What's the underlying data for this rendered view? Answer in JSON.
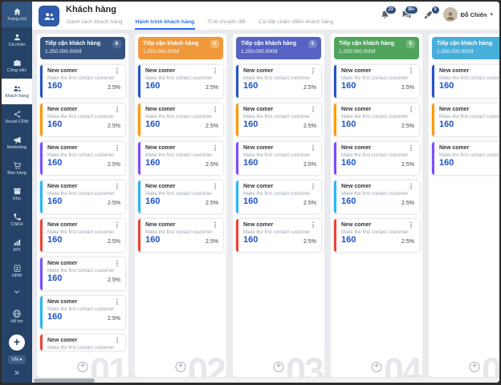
{
  "header": {
    "app_title": "Khách hàng",
    "tabs": [
      {
        "label": "Danh sách khách hàng",
        "active": false
      },
      {
        "label": "Hành trình khách hàng",
        "active": true
      },
      {
        "label": "Tỉ lệ chuyển đổi",
        "active": false
      },
      {
        "label": "Cài đặt chấm điểm khách hàng",
        "active": false
      }
    ],
    "notifications": [
      {
        "icon": "bell",
        "badge": "23"
      },
      {
        "icon": "chat",
        "badge": "99+"
      },
      {
        "icon": "rocket",
        "badge": "9"
      }
    ],
    "user": {
      "name": "Đỗ Chiến"
    }
  },
  "sidebar": {
    "items": [
      {
        "label": "Trang chủ",
        "icon": "home",
        "active": false,
        "highlight": true
      },
      {
        "label": "Cá nhân",
        "icon": "person",
        "active": false
      },
      {
        "label": "Công việc",
        "icon": "briefcase",
        "active": false
      },
      {
        "label": "Khách hàng",
        "icon": "people",
        "active": true
      },
      {
        "label": "Social CRM",
        "icon": "share",
        "active": false
      },
      {
        "label": "Marketing",
        "icon": "megaphone",
        "active": false
      },
      {
        "label": "Bán hàng",
        "icon": "cart",
        "active": false
      },
      {
        "label": "Kho",
        "icon": "box",
        "active": false
      },
      {
        "label": "CSKH",
        "icon": "phone",
        "active": false
      },
      {
        "label": "KPI",
        "icon": "chart",
        "active": false
      },
      {
        "label": "HRM",
        "icon": "badge",
        "active": false
      }
    ],
    "support": {
      "label": "Hỗ trợ",
      "icon": "globe"
    },
    "add_label": "+",
    "language": "VN",
    "collapse_icon": "»"
  },
  "board": {
    "card": {
      "title": "New comer",
      "subtitle": "Make the first contact customer",
      "value": "160",
      "percent": "2.5%"
    },
    "palette": {
      "blue": "#2553C4",
      "orange": "#FF9800",
      "purple": "#7C4DFF",
      "cyan": "#29B6F6",
      "red": "#EA4335"
    },
    "columns": [
      {
        "title": "Tiếp cận khách hàng",
        "count": "8",
        "amount": "1.250.000.000đ",
        "color": "#35537F",
        "badge_color": "#51699A",
        "watermark": "01",
        "cards": [
          "blue",
          "orange",
          "purple",
          "cyan",
          "red",
          "purple",
          "cyan",
          "red"
        ],
        "last_partial": true
      },
      {
        "title": "Tiếp cận khách hàng",
        "count": "5",
        "amount": "1.250.000.000đ",
        "color": "#F0993C",
        "badge_color": "#F4B666",
        "watermark": "02",
        "cards": [
          "blue",
          "orange",
          "purple",
          "cyan",
          "red"
        ],
        "last_partial": false
      },
      {
        "title": "Tiếp cận khách hàng",
        "count": "5",
        "amount": "1.250.000.000đ",
        "color": "#5564C2",
        "badge_color": "#7380CF",
        "watermark": "03",
        "cards": [
          "blue",
          "orange",
          "purple",
          "cyan",
          "red"
        ],
        "last_partial": false
      },
      {
        "title": "Tiếp cận khách hàng",
        "count": "5",
        "amount": "1.250.000.000đ",
        "color": "#50A55D",
        "badge_color": "#73BA7E",
        "watermark": "04",
        "cards": [
          "blue",
          "orange",
          "purple",
          "cyan",
          "red"
        ],
        "last_partial": false
      },
      {
        "title": "Tiếp cận khách hàng",
        "count": null,
        "amount": "1.250.000.000đ",
        "color": "#47AFDC",
        "badge_color": null,
        "watermark": "05",
        "cards": [
          "blue",
          "orange",
          "purple"
        ],
        "last_partial": false
      }
    ]
  }
}
